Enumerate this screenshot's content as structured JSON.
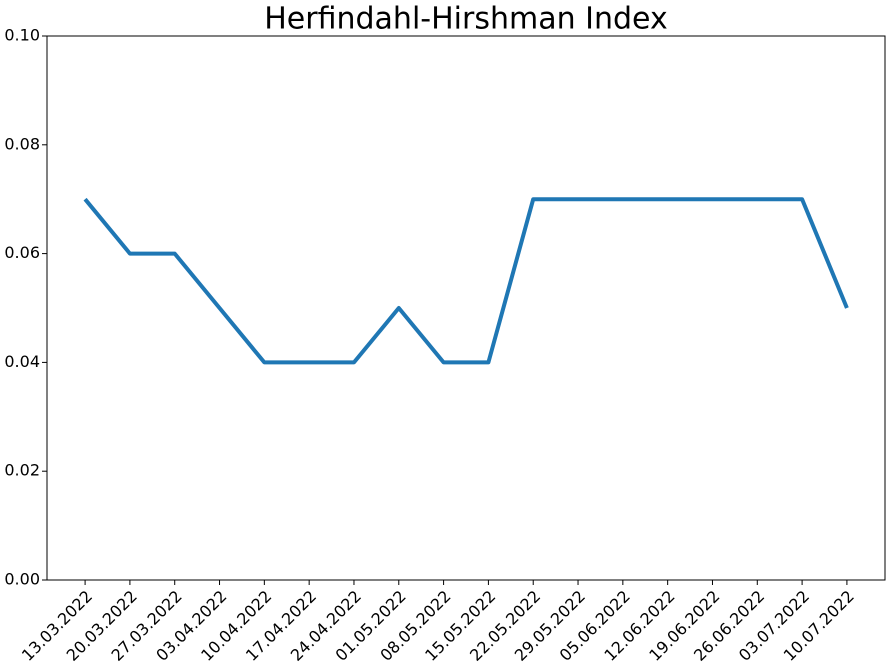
{
  "chart_data": {
    "type": "line",
    "title": "Herfindahl-Hirshman Index",
    "categories": [
      "13.03.2022",
      "20.03.2022",
      "27.03.2022",
      "03.04.2022",
      "10.04.2022",
      "17.04.2022",
      "24.04.2022",
      "01.05.2022",
      "08.05.2022",
      "15.05.2022",
      "22.05.2022",
      "29.05.2022",
      "05.06.2022",
      "12.06.2022",
      "19.06.2022",
      "26.06.2022",
      "03.07.2022",
      "10.07.2022"
    ],
    "series": [
      {
        "color": "#1f77b4",
        "values": [
          0.07,
          0.06,
          0.06,
          0.05,
          0.04,
          0.04,
          0.04,
          0.05,
          0.04,
          0.04,
          0.07,
          0.07,
          0.07,
          0.07,
          0.07,
          0.07,
          0.07,
          0.05
        ]
      }
    ],
    "ylim": [
      0,
      0.1
    ],
    "yticks": [
      {
        "value": 0,
        "label": "0.00"
      },
      {
        "value": 0.02,
        "label": "0.02"
      },
      {
        "value": 0.04,
        "label": "0.04"
      },
      {
        "value": 0.06,
        "label": "0.06"
      },
      {
        "value": 0.08,
        "label": "0.08"
      },
      {
        "value": 0.1,
        "label": "0.10"
      }
    ],
    "grid": false
  }
}
